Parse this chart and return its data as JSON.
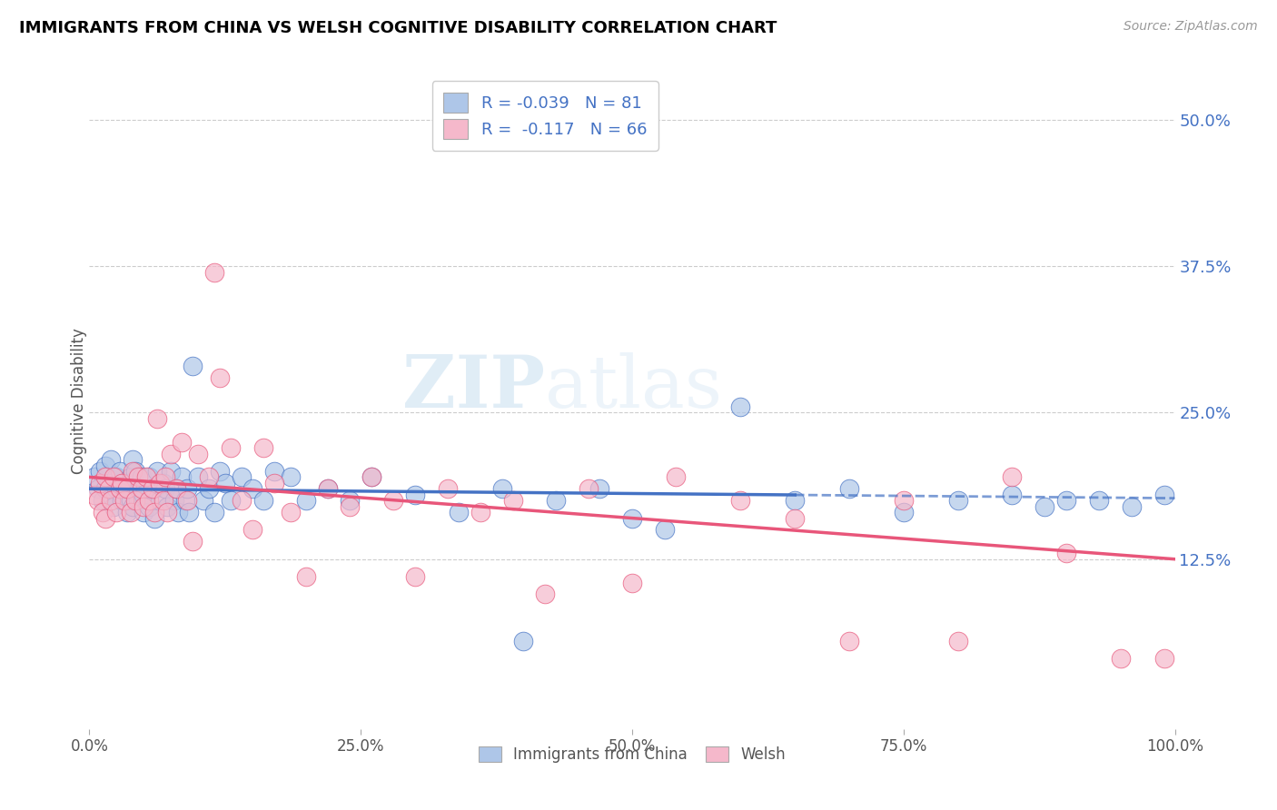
{
  "title": "IMMIGRANTS FROM CHINA VS WELSH COGNITIVE DISABILITY CORRELATION CHART",
  "source": "Source: ZipAtlas.com",
  "ylabel": "Cognitive Disability",
  "xlim": [
    0.0,
    1.0
  ],
  "ylim": [
    -0.02,
    0.54
  ],
  "xticks": [
    0.0,
    0.25,
    0.5,
    0.75,
    1.0
  ],
  "xticklabels": [
    "0.0%",
    "25.0%",
    "50.0%",
    "75.0%",
    "100.0%"
  ],
  "yticks_right": [
    0.125,
    0.25,
    0.375,
    0.5
  ],
  "yticklabels_right": [
    "12.5%",
    "25.0%",
    "37.5%",
    "50.0%"
  ],
  "legend_r1": "-0.039",
  "legend_n1": "81",
  "legend_r2": "-0.117",
  "legend_n2": "66",
  "color_blue": "#aec6e8",
  "color_pink": "#f5b8cb",
  "line_blue": "#4472c4",
  "line_pink": "#e8567a",
  "watermark_zip": "ZIP",
  "watermark_atlas": "atlas",
  "blue_line_solid_end": 0.65,
  "blue_intercept": 0.185,
  "blue_slope": -0.008,
  "pink_intercept": 0.195,
  "pink_slope": -0.07,
  "blue_scatter_x": [
    0.005,
    0.008,
    0.01,
    0.012,
    0.015,
    0.015,
    0.018,
    0.02,
    0.02,
    0.022,
    0.025,
    0.025,
    0.028,
    0.03,
    0.03,
    0.032,
    0.035,
    0.035,
    0.038,
    0.038,
    0.04,
    0.04,
    0.042,
    0.045,
    0.045,
    0.048,
    0.05,
    0.05,
    0.055,
    0.055,
    0.06,
    0.06,
    0.062,
    0.065,
    0.068,
    0.07,
    0.072,
    0.075,
    0.078,
    0.08,
    0.082,
    0.085,
    0.088,
    0.09,
    0.092,
    0.095,
    0.1,
    0.105,
    0.11,
    0.115,
    0.12,
    0.125,
    0.13,
    0.14,
    0.15,
    0.16,
    0.17,
    0.185,
    0.2,
    0.22,
    0.24,
    0.26,
    0.3,
    0.34,
    0.38,
    0.4,
    0.43,
    0.47,
    0.5,
    0.53,
    0.6,
    0.65,
    0.7,
    0.75,
    0.8,
    0.85,
    0.88,
    0.9,
    0.93,
    0.96,
    0.99
  ],
  "blue_scatter_y": [
    0.195,
    0.185,
    0.2,
    0.175,
    0.185,
    0.205,
    0.19,
    0.18,
    0.21,
    0.17,
    0.195,
    0.185,
    0.2,
    0.18,
    0.175,
    0.19,
    0.185,
    0.165,
    0.195,
    0.175,
    0.21,
    0.17,
    0.2,
    0.185,
    0.175,
    0.195,
    0.18,
    0.165,
    0.195,
    0.17,
    0.185,
    0.16,
    0.2,
    0.175,
    0.19,
    0.185,
    0.17,
    0.2,
    0.175,
    0.185,
    0.165,
    0.195,
    0.175,
    0.185,
    0.165,
    0.29,
    0.195,
    0.175,
    0.185,
    0.165,
    0.2,
    0.19,
    0.175,
    0.195,
    0.185,
    0.175,
    0.2,
    0.195,
    0.175,
    0.185,
    0.175,
    0.195,
    0.18,
    0.165,
    0.185,
    0.055,
    0.175,
    0.185,
    0.16,
    0.15,
    0.255,
    0.175,
    0.185,
    0.165,
    0.175,
    0.18,
    0.17,
    0.175,
    0.175,
    0.17,
    0.18
  ],
  "pink_scatter_x": [
    0.005,
    0.008,
    0.01,
    0.012,
    0.015,
    0.015,
    0.018,
    0.02,
    0.022,
    0.025,
    0.028,
    0.03,
    0.032,
    0.035,
    0.038,
    0.04,
    0.042,
    0.045,
    0.048,
    0.05,
    0.052,
    0.055,
    0.058,
    0.06,
    0.062,
    0.065,
    0.068,
    0.07,
    0.072,
    0.075,
    0.08,
    0.085,
    0.09,
    0.095,
    0.1,
    0.11,
    0.115,
    0.12,
    0.13,
    0.14,
    0.15,
    0.16,
    0.17,
    0.185,
    0.2,
    0.22,
    0.24,
    0.26,
    0.28,
    0.3,
    0.33,
    0.36,
    0.39,
    0.42,
    0.46,
    0.5,
    0.54,
    0.6,
    0.65,
    0.7,
    0.75,
    0.8,
    0.85,
    0.9,
    0.95,
    0.99
  ],
  "pink_scatter_y": [
    0.18,
    0.175,
    0.19,
    0.165,
    0.195,
    0.16,
    0.185,
    0.175,
    0.195,
    0.165,
    0.185,
    0.19,
    0.175,
    0.185,
    0.165,
    0.2,
    0.175,
    0.195,
    0.185,
    0.17,
    0.195,
    0.175,
    0.185,
    0.165,
    0.245,
    0.19,
    0.175,
    0.195,
    0.165,
    0.215,
    0.185,
    0.225,
    0.175,
    0.14,
    0.215,
    0.195,
    0.37,
    0.28,
    0.22,
    0.175,
    0.15,
    0.22,
    0.19,
    0.165,
    0.11,
    0.185,
    0.17,
    0.195,
    0.175,
    0.11,
    0.185,
    0.165,
    0.175,
    0.095,
    0.185,
    0.105,
    0.195,
    0.175,
    0.16,
    0.055,
    0.175,
    0.055,
    0.195,
    0.13,
    0.04,
    0.04
  ]
}
